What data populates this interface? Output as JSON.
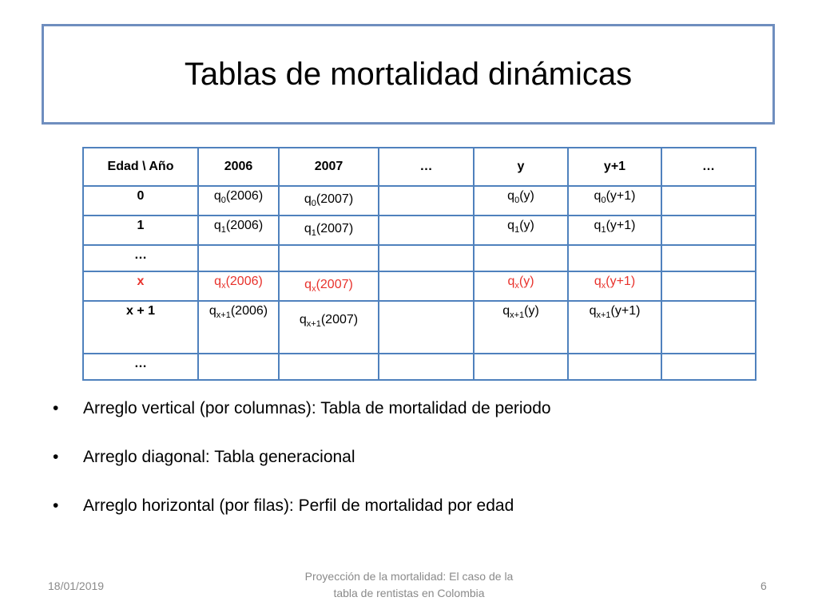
{
  "slide": {
    "title": "Tablas de mortalidad dinámicas"
  },
  "table": {
    "headers": [
      "Edad \\ Año",
      "2006",
      "2007",
      "…",
      "y",
      "y+1",
      "…"
    ],
    "rows": [
      {
        "age": "0",
        "c1": {
          "q": "q",
          "sub": "0",
          "arg": "(2006)"
        },
        "c2": {
          "q": "q",
          "sub": "0",
          "arg": "(2007)"
        },
        "c4": {
          "q": "q",
          "sub": "0",
          "arg": "(y)"
        },
        "c5": {
          "q": "q",
          "sub": "0",
          "arg": "(y+1)"
        }
      },
      {
        "age": "1",
        "c1": {
          "q": "q",
          "sub": "1",
          "arg": "(2006)"
        },
        "c2": {
          "q": "q",
          "sub": "1",
          "arg": "(2007)"
        },
        "c4": {
          "q": "q",
          "sub": "1",
          "arg": "(y)"
        },
        "c5": {
          "q": "q",
          "sub": "1",
          "arg": "(y+1)"
        }
      },
      {
        "age": "…"
      },
      {
        "age": "x",
        "c1": {
          "q": "q",
          "sub": "x",
          "arg": "(2006)"
        },
        "c2": {
          "q": "q",
          "sub": "x",
          "arg": "(2007)"
        },
        "c4": {
          "q": "q",
          "sub": "x",
          "arg": "(y)"
        },
        "c5": {
          "q": "q",
          "sub": "x",
          "arg": "(y+1)"
        }
      },
      {
        "age": "x + 1",
        "c1": {
          "q": "q",
          "sub": "x+1",
          "arg": "(2006)"
        },
        "c2": {
          "q": "q",
          "sub": "x+1",
          "arg": "(2007)"
        },
        "c4": {
          "q": "q",
          "sub": "x+1",
          "arg": "(y)"
        },
        "c5": {
          "q": "q",
          "sub": "x+1",
          "arg": "(y+1)"
        }
      },
      {
        "age": "…"
      }
    ],
    "highlight_color": "#e8322c",
    "border_color": "#4f81bd"
  },
  "bullets": [
    "Arreglo vertical (por columnas): Tabla de mortalidad de periodo",
    "Arreglo diagonal: Tabla generacional",
    "Arreglo horizontal (por filas): Perfil de mortalidad por edad"
  ],
  "bullet_symbol": "•",
  "footer": {
    "date": "18/01/2019",
    "center_line1": "Proyección de la mortalidad: El caso de la",
    "center_line2": "tabla de rentistas en Colombia",
    "page": "6"
  }
}
